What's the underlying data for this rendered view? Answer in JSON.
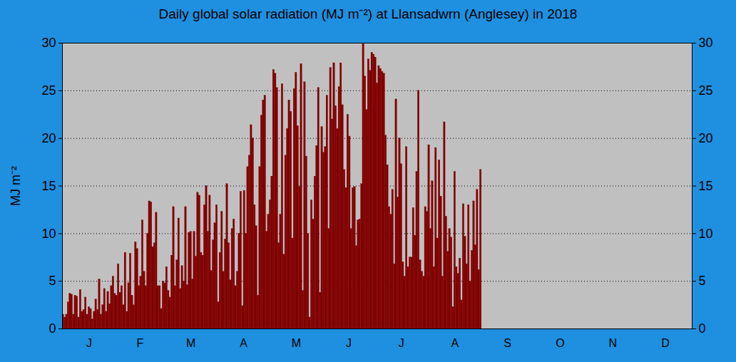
{
  "chart_data": {
    "type": "bar",
    "title": "Daily global solar radiation (MJ m⁻²) at Llansadwrn (Anglesey) in 2018",
    "ylabel": "MJ m⁻²",
    "color": "#800000",
    "grid": true,
    "xlim": [
      0,
      365
    ],
    "xticks": [
      {
        "value": 15.5,
        "label": "J"
      },
      {
        "value": 45,
        "label": "F"
      },
      {
        "value": 74.5,
        "label": "M"
      },
      {
        "value": 105,
        "label": "A"
      },
      {
        "value": 135.5,
        "label": "M"
      },
      {
        "value": 166,
        "label": "J"
      },
      {
        "value": 196.5,
        "label": "J"
      },
      {
        "value": 227.5,
        "label": "A"
      },
      {
        "value": 258,
        "label": "S"
      },
      {
        "value": 288.5,
        "label": "O"
      },
      {
        "value": 319,
        "label": "N"
      },
      {
        "value": 349.5,
        "label": "D"
      }
    ],
    "ylim": [
      0,
      30
    ],
    "yticks": [
      0,
      5,
      10,
      15,
      20,
      25,
      30
    ],
    "x": [
      1,
      2,
      3,
      4,
      5,
      6,
      7,
      8,
      9,
      10,
      11,
      12,
      13,
      14,
      15,
      16,
      17,
      18,
      19,
      20,
      21,
      22,
      23,
      24,
      25,
      26,
      27,
      28,
      29,
      30,
      31,
      32,
      33,
      34,
      35,
      36,
      37,
      38,
      39,
      40,
      41,
      42,
      43,
      44,
      45,
      46,
      47,
      48,
      49,
      50,
      51,
      52,
      53,
      54,
      55,
      56,
      57,
      58,
      59,
      60,
      61,
      62,
      63,
      64,
      65,
      66,
      67,
      68,
      69,
      70,
      71,
      72,
      73,
      74,
      75,
      76,
      77,
      78,
      79,
      80,
      81,
      82,
      83,
      84,
      85,
      86,
      87,
      88,
      89,
      90,
      91,
      92,
      93,
      94,
      95,
      96,
      97,
      98,
      99,
      100,
      101,
      102,
      103,
      104,
      105,
      106,
      107,
      108,
      109,
      110,
      111,
      112,
      113,
      114,
      115,
      116,
      117,
      118,
      119,
      120,
      121,
      122,
      123,
      124,
      125,
      126,
      127,
      128,
      129,
      130,
      131,
      132,
      133,
      134,
      135,
      136,
      137,
      138,
      139,
      140,
      141,
      142,
      143,
      144,
      145,
      146,
      147,
      148,
      149,
      150,
      151,
      152,
      153,
      154,
      155,
      156,
      157,
      158,
      159,
      160,
      161,
      162,
      163,
      164,
      165,
      166,
      167,
      168,
      169,
      170,
      171,
      172,
      173,
      174,
      175,
      176,
      177,
      178,
      179,
      180,
      181,
      182,
      183,
      184,
      185,
      186,
      187,
      188,
      189,
      190,
      191,
      192,
      193,
      194,
      195,
      196,
      197,
      198,
      199,
      200,
      201,
      202,
      203,
      204,
      205,
      206,
      207,
      208,
      209,
      210,
      211,
      212,
      213,
      214,
      215,
      216,
      217,
      218,
      219,
      220,
      221,
      222,
      223,
      224,
      225,
      226,
      227,
      228,
      229,
      230,
      231,
      232,
      233,
      234,
      235,
      236,
      237,
      238,
      239,
      240,
      241,
      242,
      243
    ],
    "values": [
      1.5,
      1.2,
      1.5,
      2.8,
      3.7,
      3.6,
      1.5,
      3.5,
      3.4,
      1.2,
      4.1,
      1.8,
      2,
      3.3,
      1.5,
      2.3,
      2.1,
      1,
      1.8,
      3.1,
      2,
      5.2,
      1.5,
      2.5,
      4.2,
      1.8,
      3.9,
      2.6,
      4.5,
      5.5,
      3.7,
      3.5,
      6.8,
      3.8,
      4.5,
      2.5,
      8,
      1.8,
      4.8,
      7.9,
      3.5,
      2.5,
      9.1,
      8.4,
      4.5,
      5.5,
      11.4,
      6,
      4.5,
      10,
      13.4,
      13.3,
      8.6,
      9,
      12.2,
      4.5,
      4.5,
      2.1,
      5,
      4.8,
      6.5,
      4,
      3.3,
      7.7,
      12.8,
      4.5,
      7.2,
      11.6,
      4.2,
      6.6,
      5,
      12.8,
      4.6,
      10.1,
      10.2,
      5.2,
      10.2,
      7.6,
      14.3,
      14,
      8,
      7.7,
      13,
      15,
      10.2,
      14,
      6.1,
      9.3,
      11.1,
      13,
      2.8,
      8,
      12.3,
      6,
      9.4,
      15.2,
      9,
      5.1,
      10.5,
      11.5,
      4.5,
      6,
      10,
      14.4,
      2.4,
      14.5,
      10,
      17,
      18.2,
      21.4,
      20,
      13,
      10.8,
      3.5,
      17,
      22.4,
      24,
      24.5,
      10.2,
      12,
      13.5,
      16,
      27.2,
      26.8,
      25.3,
      9,
      12,
      25.7,
      7.8,
      18.2,
      21,
      24,
      22.8,
      9.5,
      25.2,
      26.9,
      21.3,
      14.9,
      27.8,
      4,
      25.9,
      18.1,
      10,
      1.2,
      13.5,
      11.5,
      16,
      19.2,
      25.3,
      3.8,
      21.2,
      18.5,
      19.1,
      24.5,
      10.5,
      27.4,
      22,
      27.9,
      23.4,
      21,
      25.4,
      27.9,
      23.5,
      16.7,
      14.8,
      22.5,
      20.2,
      10.5,
      14.8,
      14.9,
      8.7,
      11.4,
      11.5,
      15.2,
      29.9,
      26.5,
      23,
      28.3,
      27.1,
      29,
      28.8,
      28.5,
      25.8,
      27.6,
      27.3,
      27,
      26.8,
      20.3,
      17.2,
      12.8,
      12,
      14.6,
      6.8,
      24.1,
      13.8,
      20,
      17.3,
      7,
      5.5,
      19.1,
      6.5,
      7.5,
      7.5,
      12.7,
      9.8,
      16.5,
      25,
      7.2,
      6,
      5.5,
      12.8,
      12.3,
      19.3,
      10.5,
      15.5,
      6.5,
      19,
      9.5,
      17.7,
      13.9,
      5.5,
      21.7,
      11.8,
      8.1,
      10.5,
      9.6,
      2.3,
      16.5,
      6.5,
      5.8,
      7.4,
      3,
      13.1,
      9.7,
      6.8,
      13,
      5,
      8.2,
      13.4,
      8.8,
      14.6,
      6.2,
      16.7
    ]
  }
}
